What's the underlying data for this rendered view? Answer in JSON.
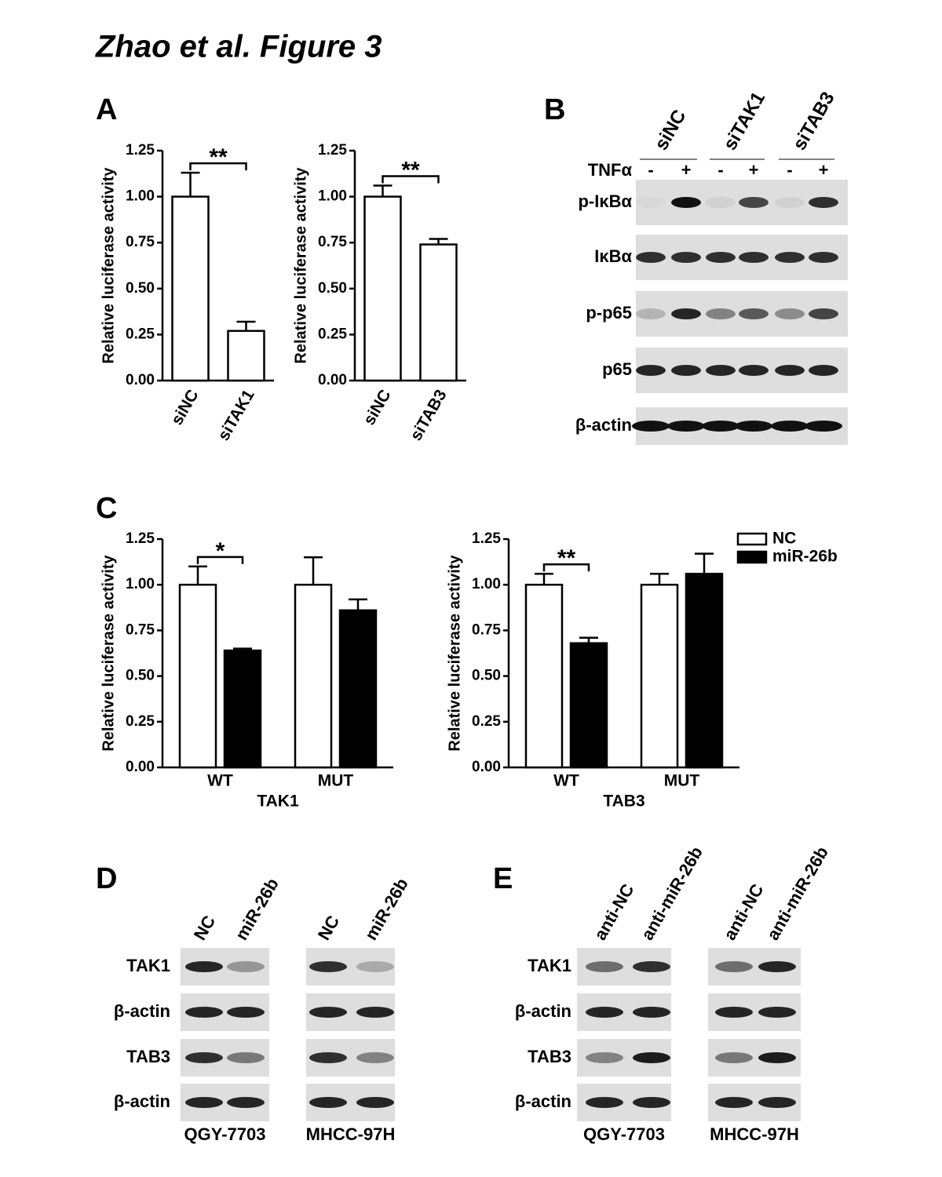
{
  "title": "Zhao et al. Figure 3",
  "panel_labels": [
    "A",
    "B",
    "C",
    "D",
    "E"
  ],
  "chart_data": [
    {
      "type": "bar",
      "ylabel": "Relative luciferase activity",
      "categories": [
        "siNC",
        "siTAK1"
      ],
      "values": [
        1.0,
        0.27
      ],
      "errors": [
        0.13,
        0.05
      ],
      "color": "#ffffff",
      "ylim": [
        0,
        1.25
      ],
      "yticks": [
        {
          "value": 0,
          "label": "0.00"
        },
        {
          "value": 0.25,
          "label": "0.25"
        },
        {
          "value": 0.5,
          "label": "0.50"
        },
        {
          "value": 0.75,
          "label": "0.75"
        },
        {
          "value": 1,
          "label": "1.00"
        },
        {
          "value": 1.25,
          "label": "1.25"
        }
      ],
      "significance": "**"
    },
    {
      "type": "bar",
      "ylabel": "Relative luciferase activity",
      "categories": [
        "siNC",
        "siTAB3"
      ],
      "values": [
        1.0,
        0.74
      ],
      "errors": [
        0.06,
        0.03
      ],
      "color": "#ffffff",
      "ylim": [
        0,
        1.25
      ],
      "yticks": [
        {
          "value": 0,
          "label": "0.00"
        },
        {
          "value": 0.25,
          "label": "0.25"
        },
        {
          "value": 0.5,
          "label": "0.50"
        },
        {
          "value": 0.75,
          "label": "0.75"
        },
        {
          "value": 1,
          "label": "1.00"
        },
        {
          "value": 1.25,
          "label": "1.25"
        }
      ],
      "significance": "**"
    },
    {
      "type": "bar",
      "ylabel": "Relative luciferase activity",
      "xlabel": "TAK1",
      "categories": [
        "WT",
        "MUT"
      ],
      "series": [
        {
          "name": "NC",
          "color": "#ffffff",
          "values": [
            1.0,
            1.0
          ],
          "errors": [
            0.1,
            0.15
          ]
        },
        {
          "name": "miR-26b",
          "color": "#000000",
          "values": [
            0.64,
            0.86
          ],
          "errors": [
            0.01,
            0.06
          ]
        }
      ],
      "ylim": [
        0,
        1.25
      ],
      "yticks": [
        {
          "value": 0,
          "label": "0.00"
        },
        {
          "value": 0.25,
          "label": "0.25"
        },
        {
          "value": 0.5,
          "label": "0.50"
        },
        {
          "value": 0.75,
          "label": "0.75"
        },
        {
          "value": 1,
          "label": "1.00"
        },
        {
          "value": 1.25,
          "label": "1.25"
        }
      ],
      "significance": "*"
    },
    {
      "type": "bar",
      "ylabel": "Relative luciferase activity",
      "xlabel": "TAB3",
      "categories": [
        "WT",
        "MUT"
      ],
      "series": [
        {
          "name": "NC",
          "color": "#ffffff",
          "values": [
            1.0,
            1.0
          ],
          "errors": [
            0.06,
            0.06
          ]
        },
        {
          "name": "miR-26b",
          "color": "#000000",
          "values": [
            0.68,
            1.06
          ],
          "errors": [
            0.03,
            0.11
          ]
        }
      ],
      "ylim": [
        0,
        1.25
      ],
      "yticks": [
        {
          "value": 0,
          "label": "0.00"
        },
        {
          "value": 0.25,
          "label": "0.25"
        },
        {
          "value": 0.5,
          "label": "0.50"
        },
        {
          "value": 0.75,
          "label": "0.75"
        },
        {
          "value": 1,
          "label": "1.00"
        },
        {
          "value": 1.25,
          "label": "1.25"
        }
      ],
      "significance": "**",
      "legend": "right"
    }
  ],
  "blot_b": {
    "groups": [
      "siNC",
      "siTAK1",
      "siTAB3"
    ],
    "treatment": "TNFα",
    "lanes": [
      "-",
      "+",
      "-",
      "+",
      "-",
      "+"
    ],
    "rows": [
      "p-IκBα",
      "IκBα",
      "p-p65",
      "p65",
      "β-actin"
    ]
  },
  "blot_d": {
    "lanes": [
      "NC",
      "miR-26b"
    ],
    "rows": [
      "TAK1",
      "β-actin",
      "TAB3",
      "β-actin"
    ],
    "cell_lines": [
      "QGY-7703",
      "MHCC-97H"
    ]
  },
  "blot_e": {
    "lanes": [
      "anti-NC",
      "anti-miR-26b"
    ],
    "rows": [
      "TAK1",
      "β-actin",
      "TAB3",
      "β-actin"
    ],
    "cell_lines": [
      "QGY-7703",
      "MHCC-97H"
    ]
  }
}
